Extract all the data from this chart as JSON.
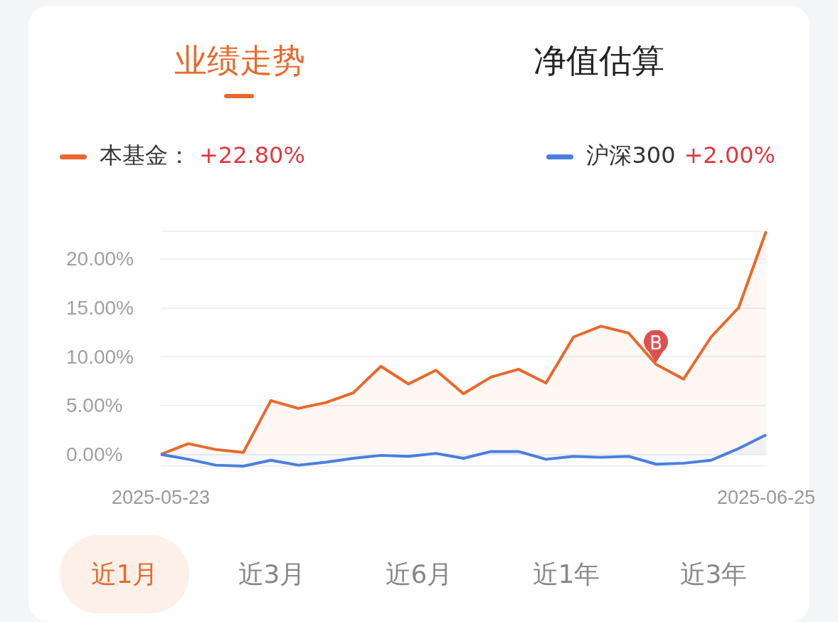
{
  "chart_data": {
    "type": "area",
    "title": "业绩走势",
    "subtitle": "净值估算",
    "categories": [
      "2025-05-23",
      null,
      null,
      null,
      null,
      null,
      null,
      null,
      null,
      null,
      null,
      null,
      null,
      null,
      null,
      null,
      null,
      null,
      null,
      null,
      null,
      null,
      "2025-06-25"
    ],
    "series": [
      {
        "name": "本基金：",
        "color": "#e8692c",
        "values": [
          0,
          1.1,
          0.5,
          0.2,
          5.5,
          4.7,
          5.3,
          6.3,
          9.0,
          7.2,
          8.6,
          6.2,
          7.9,
          8.7,
          7.3,
          12.0,
          13.1,
          12.4,
          9.2,
          7.7,
          12.0,
          15.0,
          22.8
        ]
      },
      {
        "name": "沪深300",
        "color": "#4a7fe0",
        "values": [
          0,
          -0.5,
          -1.1,
          -1.2,
          -0.6,
          -1.1,
          -0.8,
          -0.4,
          -0.1,
          -0.2,
          0.1,
          -0.4,
          0.3,
          0.3,
          -0.5,
          -0.2,
          -0.3,
          -0.2,
          -1.0,
          -0.9,
          -0.6,
          0.6,
          2.0
        ]
      }
    ],
    "ylim": [
      -1.2,
      22.8
    ],
    "yticks": [
      {
        "value": -1.2,
        "label": null
      },
      {
        "value": 0,
        "label": "0.00%"
      },
      {
        "value": 5,
        "label": "5.00%"
      },
      {
        "value": 10,
        "label": "10.00%"
      },
      {
        "value": 15,
        "label": "15.00%"
      },
      {
        "value": 20,
        "label": "20.00%"
      },
      {
        "value": 22.8,
        "label": null
      }
    ],
    "grid": "y",
    "legend": "top",
    "marker": "none",
    "line_style": "solid",
    "annotations": [
      "+22.80%",
      "+2.00%",
      {
        "text": "B",
        "y": 9.2
      },
      "近1月",
      "近3月",
      "近6月",
      "近1年",
      "近3年"
    ]
  }
}
